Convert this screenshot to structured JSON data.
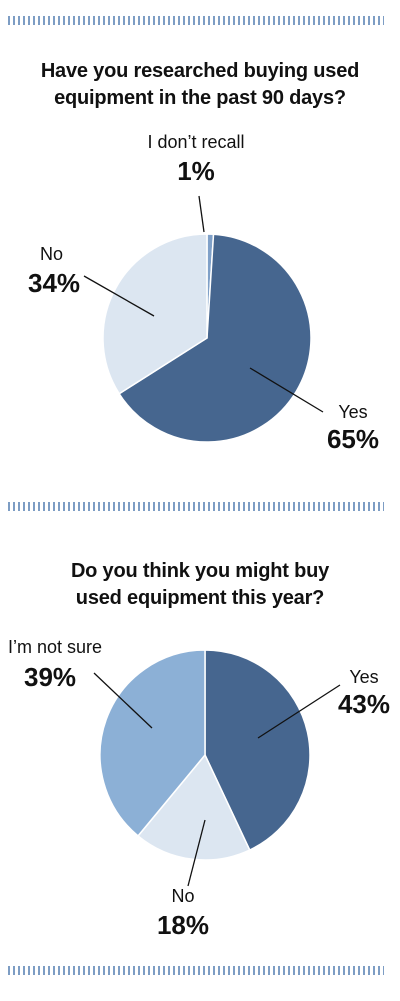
{
  "chart_data": [
    {
      "type": "pie",
      "title_lines": [
        "Have you researched buying used",
        "equipment in the past 90 days?"
      ],
      "slice_order": [
        "I don’t recall",
        "Yes",
        "No"
      ],
      "slices": [
        {
          "label": "I don’t recall",
          "value": 1,
          "value_label": "1%",
          "color": "#7fa0c8"
        },
        {
          "label": "Yes",
          "value": 65,
          "value_label": "65%",
          "color": "#46668f"
        },
        {
          "label": "No",
          "value": 34,
          "value_label": "34%",
          "color": "#dce6f1"
        }
      ]
    },
    {
      "type": "pie",
      "title_lines": [
        "Do you think you might buy",
        "used equipment this year?"
      ],
      "slice_order": [
        "Yes",
        "No",
        "I’m not sure"
      ],
      "slices": [
        {
          "label": "Yes",
          "value": 43,
          "value_label": "43%",
          "color": "#46668f"
        },
        {
          "label": "No",
          "value": 18,
          "value_label": "18%",
          "color": "#dce6f1"
        },
        {
          "label": "I’m not sure",
          "value": 39,
          "value_label": "39%",
          "color": "#8cb0d6"
        }
      ]
    }
  ],
  "colors": {
    "divider": "#7d9dc4",
    "slice_stroke": "#ffffff"
  }
}
